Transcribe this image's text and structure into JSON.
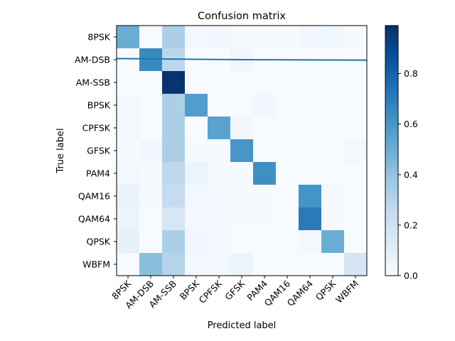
{
  "chart_data": {
    "type": "heatmap",
    "title": "Confusion matrix",
    "xlabel": "Predicted label",
    "ylabel": "True label",
    "row_labels": [
      "8PSK",
      "AM-DSB",
      "AM-SSB",
      "BPSK",
      "CPFSK",
      "GFSK",
      "PAM4",
      "QAM16",
      "QAM64",
      "QPSK",
      "WBFM"
    ],
    "col_labels": [
      "8PSK",
      "AM-DSB",
      "AM-SSB",
      "BPSK",
      "CPFSK",
      "GFSK",
      "PAM4",
      "QAM16",
      "QAM64",
      "QPSK",
      "WBFM"
    ],
    "values": [
      [
        0.5,
        0.0,
        0.33,
        0.02,
        0.03,
        0.01,
        0.01,
        0.01,
        0.03,
        0.04,
        0.01
      ],
      [
        0.0,
        0.65,
        0.28,
        0.0,
        0.0,
        0.04,
        0.0,
        0.0,
        0.0,
        0.0,
        0.0
      ],
      [
        0.0,
        0.0,
        0.98,
        0.0,
        0.0,
        0.0,
        0.0,
        0.0,
        0.0,
        0.0,
        0.0
      ],
      [
        0.02,
        0.0,
        0.33,
        0.57,
        0.0,
        0.0,
        0.03,
        0.0,
        0.0,
        0.0,
        0.0
      ],
      [
        0.02,
        0.0,
        0.33,
        0.0,
        0.55,
        0.03,
        0.0,
        0.0,
        0.0,
        0.0,
        0.0
      ],
      [
        0.01,
        0.03,
        0.33,
        0.01,
        0.01,
        0.6,
        0.0,
        0.0,
        0.0,
        0.0,
        0.02
      ],
      [
        0.02,
        0.01,
        0.27,
        0.06,
        0.01,
        0.01,
        0.63,
        0.0,
        0.0,
        0.0,
        0.0
      ],
      [
        0.07,
        0.01,
        0.25,
        0.02,
        0.02,
        0.01,
        0.01,
        0.0,
        0.61,
        0.02,
        0.0
      ],
      [
        0.06,
        0.0,
        0.16,
        0.02,
        0.02,
        0.01,
        0.01,
        0.0,
        0.71,
        0.01,
        0.0
      ],
      [
        0.08,
        0.0,
        0.33,
        0.03,
        0.02,
        0.0,
        0.0,
        0.0,
        0.02,
        0.5,
        0.0
      ],
      [
        0.0,
        0.42,
        0.3,
        0.02,
        0.02,
        0.05,
        0.0,
        0.0,
        0.0,
        0.0,
        0.17
      ]
    ],
    "colormap": "Blues",
    "colorbar": {
      "range": [
        0,
        0.99
      ],
      "ticks": [
        0.0,
        0.2,
        0.4,
        0.6,
        0.8
      ],
      "tick_labels": [
        "0.0",
        "0.2",
        "0.4",
        "0.6",
        "0.8"
      ]
    },
    "overlay_line": {
      "color": "#1f77b4",
      "y": [
        1.45,
        1.5,
        1.52
      ]
    }
  }
}
